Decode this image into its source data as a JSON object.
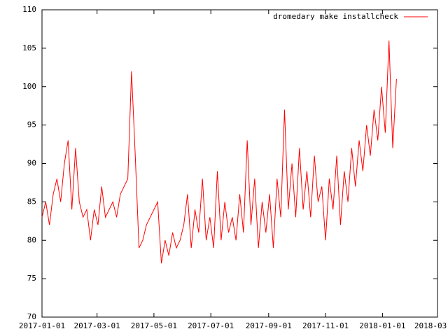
{
  "chart_data": {
    "type": "line",
    "x": [
      "2017-01-01",
      "2017-01-05",
      "2017-01-09",
      "2017-01-13",
      "2017-01-17",
      "2017-01-21",
      "2017-01-25",
      "2017-01-29",
      "2017-02-02",
      "2017-02-06",
      "2017-02-10",
      "2017-02-14",
      "2017-02-18",
      "2017-02-22",
      "2017-02-26",
      "2017-03-02",
      "2017-03-06",
      "2017-03-10",
      "2017-03-14",
      "2017-03-18",
      "2017-03-22",
      "2017-03-26",
      "2017-03-30",
      "2017-04-03",
      "2017-04-07",
      "2017-04-11",
      "2017-04-15",
      "2017-04-19",
      "2017-04-23",
      "2017-04-27",
      "2017-05-01",
      "2017-05-05",
      "2017-05-09",
      "2017-05-13",
      "2017-05-17",
      "2017-05-21",
      "2017-05-25",
      "2017-05-29",
      "2017-06-02",
      "2017-06-06",
      "2017-06-10",
      "2017-06-14",
      "2017-06-18",
      "2017-06-22",
      "2017-06-26",
      "2017-06-30",
      "2017-07-04",
      "2017-07-08",
      "2017-07-12",
      "2017-07-16",
      "2017-07-20",
      "2017-07-24",
      "2017-07-28",
      "2017-08-01",
      "2017-08-05",
      "2017-08-09",
      "2017-08-13",
      "2017-08-17",
      "2017-08-21",
      "2017-08-25",
      "2017-08-29",
      "2017-09-02",
      "2017-09-06",
      "2017-09-10",
      "2017-09-14",
      "2017-09-18",
      "2017-09-22",
      "2017-09-26",
      "2017-09-30",
      "2017-10-04",
      "2017-10-08",
      "2017-10-12",
      "2017-10-16",
      "2017-10-20",
      "2017-10-24",
      "2017-10-28",
      "2017-11-01",
      "2017-11-05",
      "2017-11-09",
      "2017-11-13",
      "2017-11-17",
      "2017-11-21",
      "2017-11-25",
      "2017-11-29",
      "2017-12-03",
      "2017-12-07",
      "2017-12-11",
      "2017-12-15",
      "2017-12-19",
      "2017-12-23",
      "2017-12-27",
      "2017-12-31",
      "2018-01-04",
      "2018-01-08",
      "2018-01-12",
      "2018-01-16"
    ],
    "series": [
      {
        "name": "dromedary make installcheck",
        "color": "#ff0000",
        "values": [
          83,
          85,
          82,
          86,
          88,
          85,
          90,
          93,
          84,
          92,
          85,
          83,
          84,
          80,
          84,
          82,
          87,
          83,
          84,
          85,
          83,
          86,
          87,
          88,
          102,
          91,
          79,
          80,
          82,
          83,
          84,
          85,
          77,
          80,
          78,
          81,
          79,
          80,
          82,
          86,
          79,
          84,
          81,
          88,
          80,
          83,
          79,
          89,
          80,
          85,
          81,
          83,
          80,
          86,
          81,
          93,
          82,
          88,
          79,
          85,
          81,
          86,
          79,
          88,
          83,
          97,
          84,
          90,
          83,
          92,
          84,
          89,
          83,
          91,
          85,
          87,
          80,
          88,
          84,
          91,
          82,
          89,
          85,
          92,
          87,
          93,
          89,
          95,
          91,
          97,
          93,
          100,
          94,
          106,
          92,
          101
        ]
      }
    ],
    "xlim": [
      "2017-01-01",
      "2018-03-01"
    ],
    "xticks": [
      "2017-01-01",
      "2017-03-01",
      "2017-05-01",
      "2017-07-01",
      "2017-09-01",
      "2017-11-01",
      "2018-01-01",
      "2018-03-01"
    ],
    "ylim": [
      70,
      110
    ],
    "yticks": [
      70,
      75,
      80,
      85,
      90,
      95,
      100,
      105,
      110
    ],
    "legend": "top-right"
  }
}
